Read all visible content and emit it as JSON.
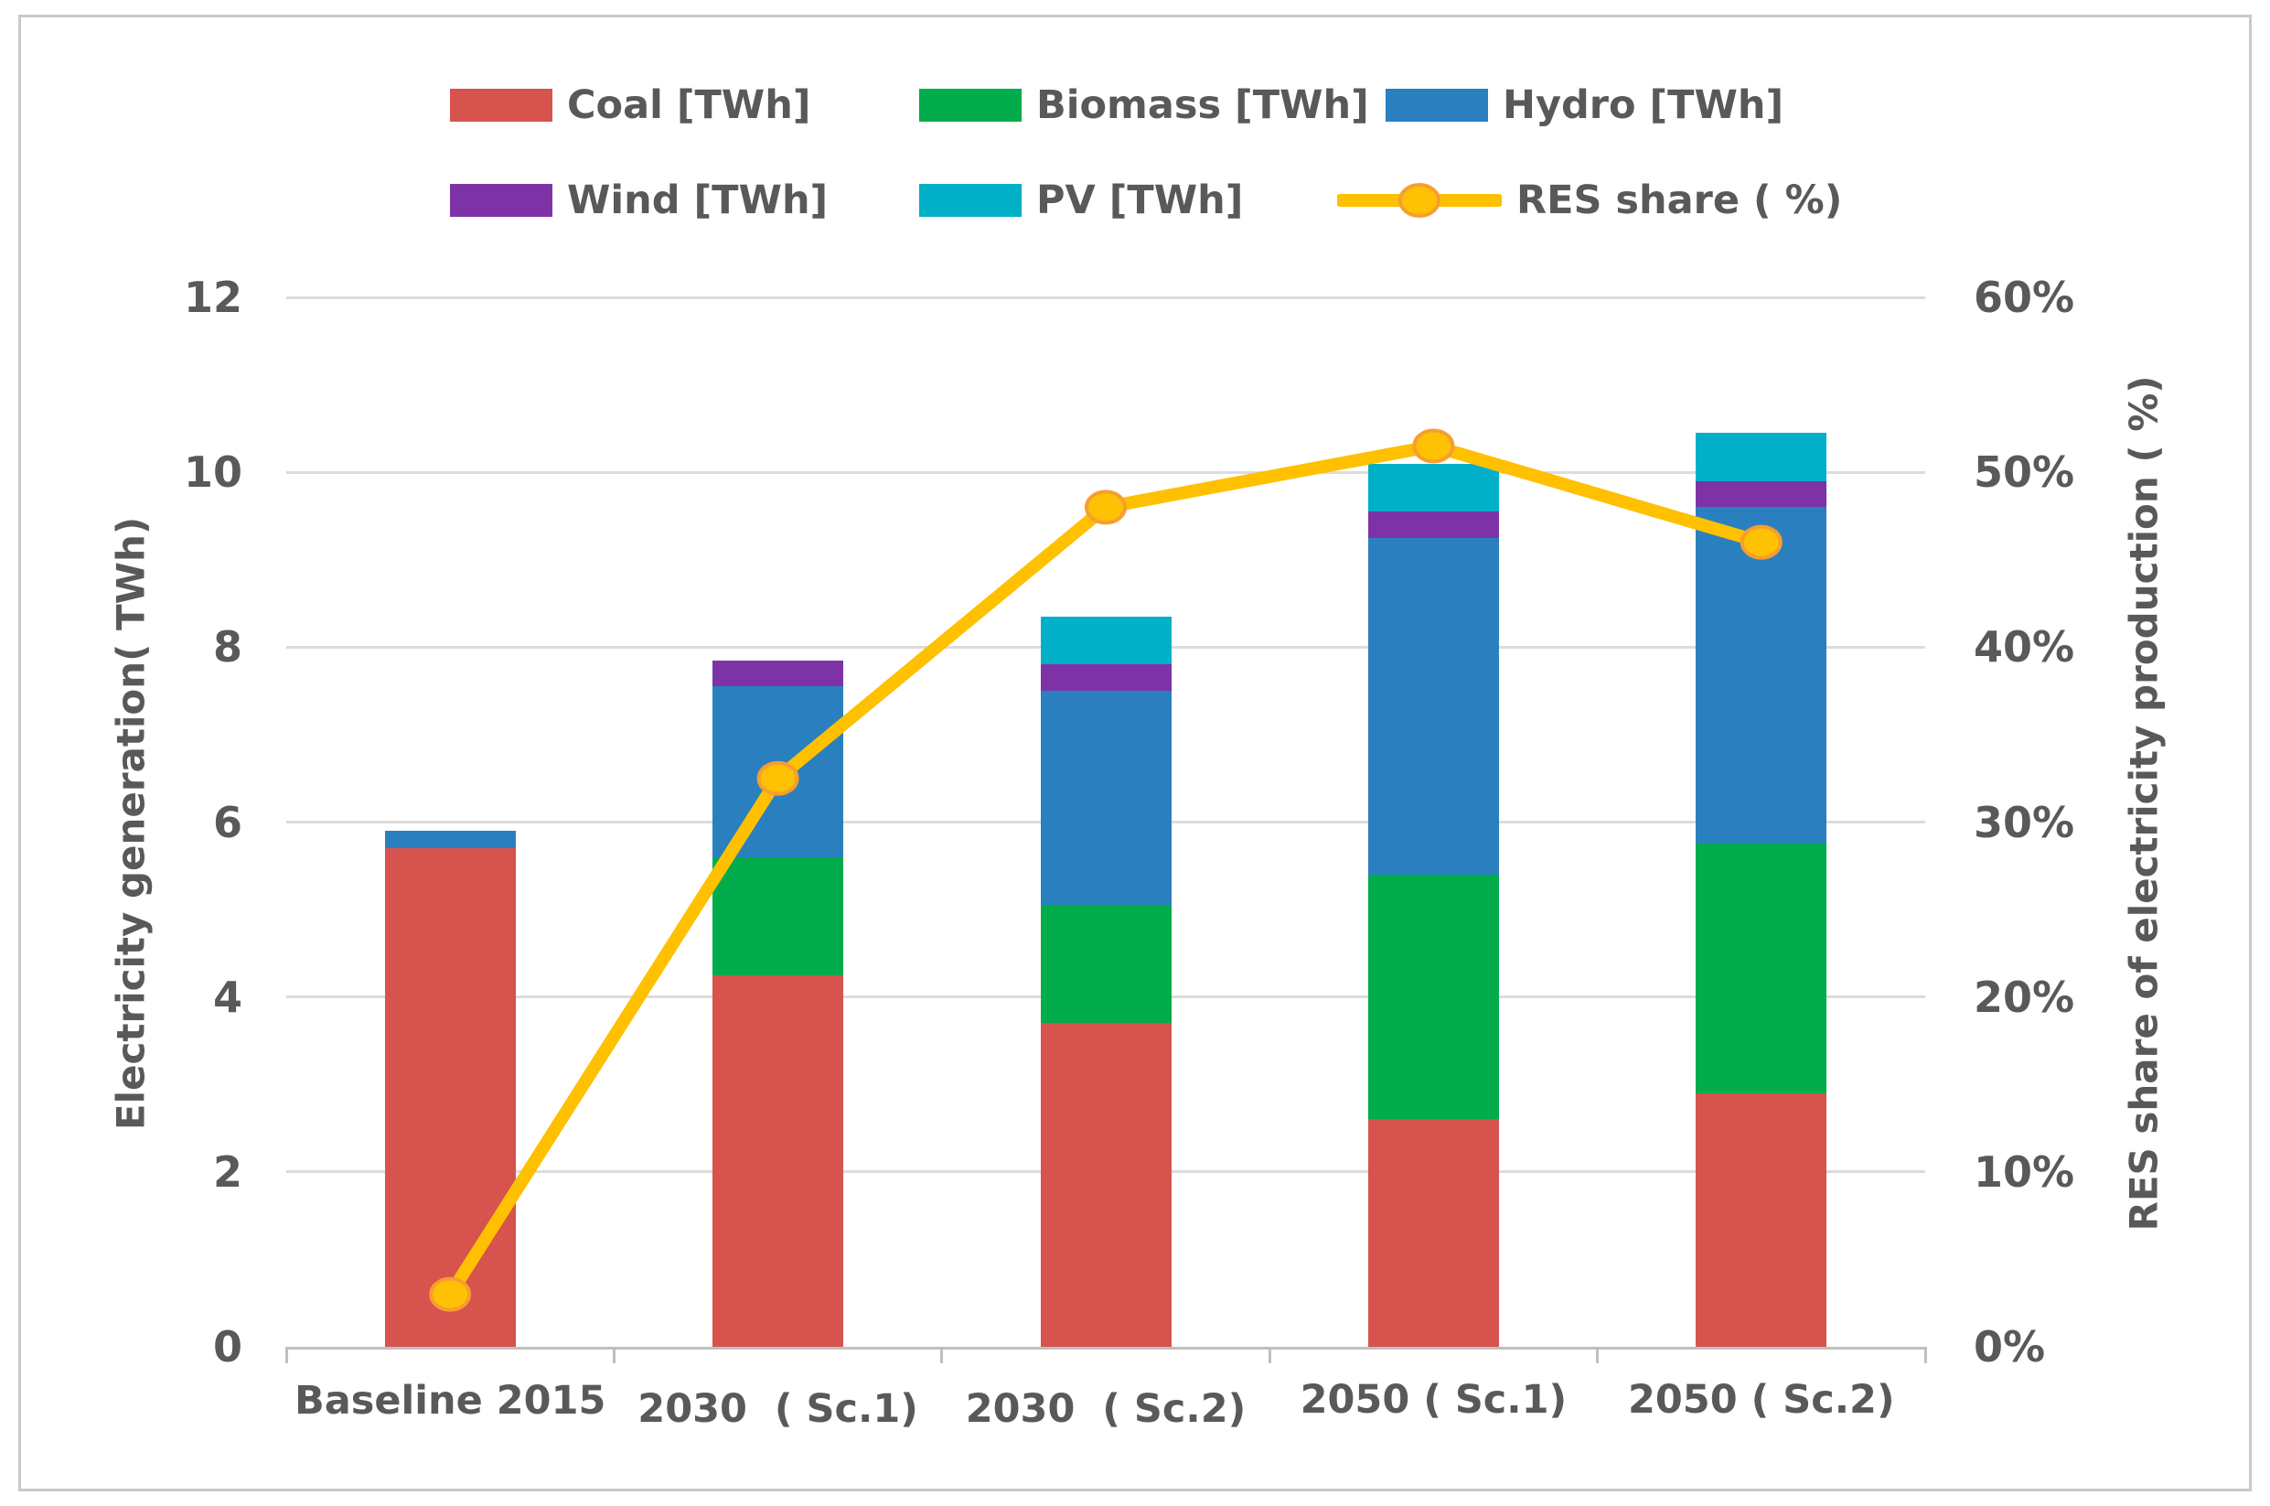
{
  "chart_data": {
    "type": "bar",
    "subtype": "stacked-bar-with-line",
    "categories": [
      "Baseline 2015",
      "2030  ( Sc.1)",
      "2030  ( Sc.2)",
      "2050 ( Sc.1)",
      "2050 ( Sc.2)"
    ],
    "series": [
      {
        "name": "Coal [TWh]",
        "color": "#d6534e",
        "values": [
          5.7,
          4.25,
          3.7,
          2.6,
          2.9
        ]
      },
      {
        "name": "Biomass [TWh]",
        "color": "#00ac4b",
        "values": [
          0,
          1.35,
          1.35,
          2.8,
          2.85
        ]
      },
      {
        "name": "Hydro [TWh]",
        "color": "#2a80be",
        "values": [
          0.2,
          1.95,
          2.45,
          3.85,
          3.85
        ]
      },
      {
        "name": "Wind [TWh]",
        "color": "#7d33a6",
        "values": [
          0,
          0.3,
          0.3,
          0.3,
          0.3
        ]
      },
      {
        "name": "PV [TWh]",
        "color": "#00afc8",
        "values": [
          0,
          0,
          0.55,
          0.55,
          0.55
        ]
      }
    ],
    "line_series": {
      "name": "RES share ( %)",
      "color": "#ffc000",
      "marker_fill": "#ffc104",
      "marker_stroke": "#f79e2d",
      "axis": "right",
      "values_percent": [
        3,
        32.5,
        48,
        51.5,
        46
      ]
    },
    "left_axis": {
      "label": "Electricity generation( TWh)",
      "ticks": [
        0,
        2,
        4,
        6,
        8,
        10,
        12
      ],
      "range": [
        0,
        12
      ]
    },
    "right_axis": {
      "label": "RES share of electricity production ( %)",
      "ticks": [
        "0%",
        "10%",
        "20%",
        "30%",
        "40%",
        "50%",
        "60%"
      ],
      "range": [
        0,
        60
      ]
    },
    "grid": "horizontal",
    "legend_position": "top",
    "colors": {
      "text": "#595959",
      "gridline": "#dcdcdc",
      "axisline": "#bfbfbf",
      "border": "#c9c9c9",
      "background": "#ffffff"
    }
  }
}
